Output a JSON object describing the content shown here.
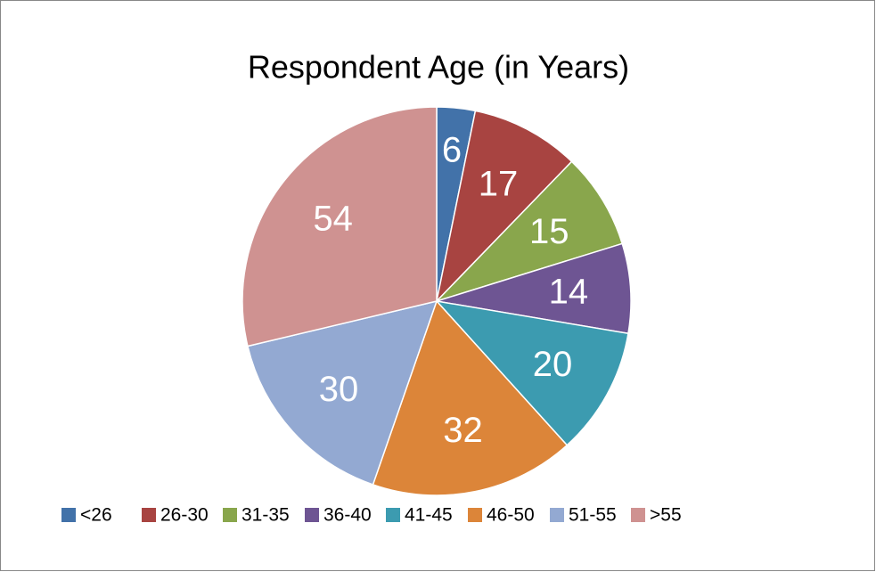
{
  "chart_data": {
    "type": "pie",
    "title": "Respondent Age (in Years)",
    "categories": [
      "<26",
      "26-30",
      "31-35",
      "36-40",
      "41-45",
      "46-50",
      "51-55",
      ">55"
    ],
    "values": [
      6,
      17,
      15,
      14,
      20,
      32,
      30,
      54
    ],
    "colors": [
      "#4272a9",
      "#a84441",
      "#89a64c",
      "#6e5593",
      "#3c9bb0",
      "#dc8539",
      "#93a9d2",
      "#cf9291"
    ],
    "legend": "bottom"
  }
}
